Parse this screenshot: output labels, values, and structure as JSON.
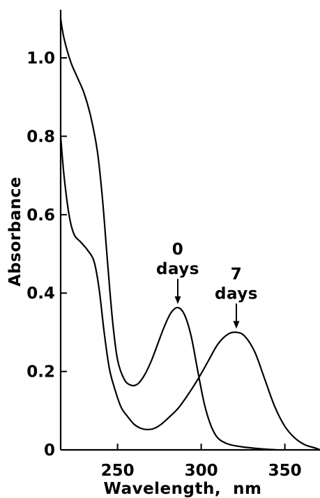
{
  "chart_data": {
    "type": "line",
    "title": "",
    "xlabel": "Wavelength,  nm",
    "ylabel": "Absorbance",
    "xlim": [
      216,
      371
    ],
    "ylim": [
      0,
      1.12
    ],
    "x_ticks": [
      250,
      300,
      350
    ],
    "y_ticks": [
      0,
      0.2,
      0.4,
      0.6,
      0.8,
      1.0
    ],
    "x_tick_labels": [
      "250",
      "300",
      "350"
    ],
    "y_tick_labels": [
      "0",
      "0.2",
      "0.4",
      "0.6",
      "0.8",
      "1.0"
    ],
    "grid": false,
    "legend": "none",
    "series": [
      {
        "name": "0 days",
        "points": [
          [
            216,
            1.1
          ],
          [
            218,
            1.05
          ],
          [
            222,
            0.99
          ],
          [
            226,
            0.95
          ],
          [
            230,
            0.91
          ],
          [
            234,
            0.85
          ],
          [
            238,
            0.76
          ],
          [
            241,
            0.64
          ],
          [
            244,
            0.48
          ],
          [
            247,
            0.33
          ],
          [
            250,
            0.23
          ],
          [
            254,
            0.18
          ],
          [
            258,
            0.165
          ],
          [
            262,
            0.168
          ],
          [
            266,
            0.19
          ],
          [
            270,
            0.225
          ],
          [
            274,
            0.27
          ],
          [
            278,
            0.315
          ],
          [
            282,
            0.35
          ],
          [
            286,
            0.363
          ],
          [
            290,
            0.345
          ],
          [
            294,
            0.29
          ],
          [
            298,
            0.2
          ],
          [
            302,
            0.115
          ],
          [
            306,
            0.06
          ],
          [
            310,
            0.03
          ],
          [
            316,
            0.015
          ],
          [
            324,
            0.008
          ],
          [
            335,
            0.003
          ],
          [
            345,
            0.0
          ]
        ]
      },
      {
        "name": "7 days",
        "points": [
          [
            216,
            0.8
          ],
          [
            218,
            0.7
          ],
          [
            221,
            0.6
          ],
          [
            224,
            0.55
          ],
          [
            228,
            0.53
          ],
          [
            232,
            0.51
          ],
          [
            236,
            0.48
          ],
          [
            239,
            0.41
          ],
          [
            242,
            0.3
          ],
          [
            245,
            0.21
          ],
          [
            248,
            0.16
          ],
          [
            252,
            0.11
          ],
          [
            256,
            0.085
          ],
          [
            260,
            0.065
          ],
          [
            264,
            0.055
          ],
          [
            268,
            0.052
          ],
          [
            272,
            0.055
          ],
          [
            276,
            0.065
          ],
          [
            280,
            0.08
          ],
          [
            286,
            0.105
          ],
          [
            292,
            0.14
          ],
          [
            298,
            0.18
          ],
          [
            304,
            0.225
          ],
          [
            310,
            0.27
          ],
          [
            316,
            0.295
          ],
          [
            321,
            0.3
          ],
          [
            326,
            0.29
          ],
          [
            332,
            0.25
          ],
          [
            338,
            0.18
          ],
          [
            344,
            0.11
          ],
          [
            350,
            0.06
          ],
          [
            356,
            0.03
          ],
          [
            362,
            0.013
          ],
          [
            368,
            0.005
          ],
          [
            371,
            0.0
          ]
        ]
      }
    ],
    "annotations": [
      {
        "number": "0",
        "unit": "days",
        "x": 286,
        "y": 0.365
      },
      {
        "number": "7",
        "unit": "days",
        "x": 321,
        "y": 0.302
      }
    ]
  }
}
